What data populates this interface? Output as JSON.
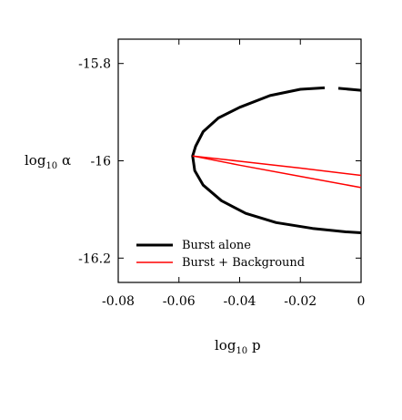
{
  "chart_data": {
    "type": "line",
    "xlabel_base": "log",
    "xlabel_sub": "10",
    "xlabel_var": " p",
    "ylabel_base": "log",
    "ylabel_sub": "10",
    "ylabel_var": " α",
    "xlim": [
      -0.08,
      0
    ],
    "ylim": [
      -16.25,
      -15.75
    ],
    "x_ticks": [
      -0.08,
      -0.06,
      -0.04,
      -0.02,
      0
    ],
    "x_tick_labels": [
      "-0.08",
      "-0.06",
      "-0.04",
      "-0.02",
      "0"
    ],
    "y_ticks": [
      -16.2,
      -16,
      -15.8
    ],
    "y_tick_labels": [
      "-16.2",
      "-16",
      "-15.8"
    ],
    "grid": false,
    "legend_position": "bottom-left",
    "series": [
      {
        "name": "Burst alone",
        "color": "#000000",
        "points": [
          [
            0,
            -15.855
          ],
          [
            -0.01,
            -15.85
          ],
          [
            -0.02,
            -15.853
          ],
          [
            -0.03,
            -15.866
          ],
          [
            -0.04,
            -15.89
          ],
          [
            -0.047,
            -15.912
          ],
          [
            -0.052,
            -15.94
          ],
          [
            -0.0545,
            -15.97
          ],
          [
            -0.0555,
            -15.99
          ],
          [
            -0.0548,
            -16.02
          ],
          [
            -0.052,
            -16.05
          ],
          [
            -0.046,
            -16.082
          ],
          [
            -0.038,
            -16.108
          ],
          [
            -0.028,
            -16.127
          ],
          [
            -0.016,
            -16.139
          ],
          [
            -0.005,
            -16.146
          ],
          [
            0,
            -16.148
          ]
        ]
      },
      {
        "name": "Burst + Background",
        "color": "#ff0000",
        "branches": [
          [
            [
              -0.0555,
              -15.99
            ],
            [
              -0.04,
              -16.001
            ],
            [
              -0.02,
              -16.015
            ],
            [
              0,
              -16.03
            ]
          ],
          [
            [
              -0.0555,
              -15.99
            ],
            [
              -0.04,
              -16.009
            ],
            [
              -0.02,
              -16.032
            ],
            [
              0,
              -16.055
            ]
          ]
        ]
      }
    ]
  }
}
